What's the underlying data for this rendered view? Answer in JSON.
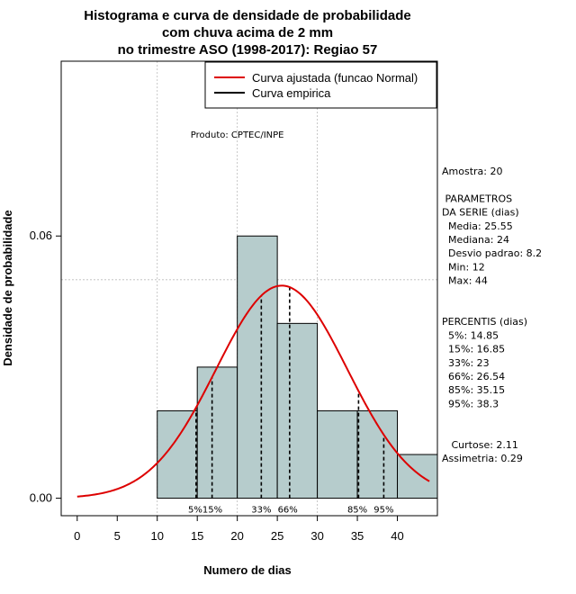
{
  "chart_data": {
    "type": "bar",
    "title_lines": [
      "Histograma e curva de densidade de probabilidade",
      "com chuva acima de 2 mm",
      "no trimestre ASO (1998-2017): Regiao 57"
    ],
    "xlabel": "Numero de dias",
    "ylabel": "Densidade de probabilidade",
    "xlim": [
      -2,
      45
    ],
    "ylim": [
      -0.004,
      0.1
    ],
    "xticks": [
      0,
      5,
      10,
      15,
      20,
      25,
      30,
      35,
      40
    ],
    "yticks": [
      0.0,
      0.06
    ],
    "ytick_labels": [
      "0.00",
      "0.06"
    ],
    "grid_x": [
      10,
      20,
      30
    ],
    "grid_y": [
      0.05,
      0.1
    ],
    "bins": [
      {
        "start": 10,
        "end": 15,
        "value": 0.02
      },
      {
        "start": 15,
        "end": 20,
        "value": 0.03
      },
      {
        "start": 20,
        "end": 25,
        "value": 0.06
      },
      {
        "start": 25,
        "end": 30,
        "value": 0.04
      },
      {
        "start": 30,
        "end": 35,
        "value": 0.02
      },
      {
        "start": 35,
        "end": 40,
        "value": 0.02
      },
      {
        "start": 40,
        "end": 45,
        "value": 0.01
      }
    ],
    "normal_curve": {
      "mean": 25.55,
      "sd": 8.2,
      "x_from": 0,
      "x_to": 44
    },
    "percentile_lines": [
      {
        "label": "5%",
        "x": 14.85
      },
      {
        "label": "15%",
        "x": 16.85
      },
      {
        "label": "33%",
        "x": 23
      },
      {
        "label": "66%",
        "x": 26.54
      },
      {
        "label": "85%",
        "x": 35.15
      },
      {
        "label": "95%",
        "x": 38.3
      }
    ],
    "percentile_labels": [
      {
        "text": "5%15%",
        "x": 16
      },
      {
        "text": "33%",
        "x": 23
      },
      {
        "text": "66%",
        "x": 26.3
      },
      {
        "text": "85%",
        "x": 35
      },
      {
        "text": "95%",
        "x": 38.3
      }
    ],
    "legend": {
      "position": "top-right",
      "entries": [
        {
          "label": "Curva ajustada (funcao Normal)",
          "color": "#dd0000"
        },
        {
          "label": "Curva empirica",
          "color": "#000000"
        }
      ]
    },
    "annotation": "Produto: CPTEC/INPE",
    "annotation_at": {
      "x": 20,
      "y": 0.0825
    }
  },
  "side_panel": {
    "lines": [
      "Amostra: 20",
      "",
      " PARAMETROS",
      "DA SERIE (dias)",
      "  Media: 25.55",
      "  Mediana: 24",
      "  Desvio padrao: 8.2",
      "  Min: 12",
      "  Max: 44",
      "",
      "",
      "PERCENTIS (dias)",
      "  5%: 14.85",
      "  15%: 16.85",
      "  33%: 23",
      "  66%: 26.54",
      "  85%: 35.15",
      "  95%: 38.3",
      "",
      "",
      "   Curtose: 2.11",
      "Assimetria: 0.29"
    ]
  },
  "colors": {
    "bar_fill": "#b6cccc",
    "curve": "#dd0000",
    "grid": "#bbbbbb"
  }
}
